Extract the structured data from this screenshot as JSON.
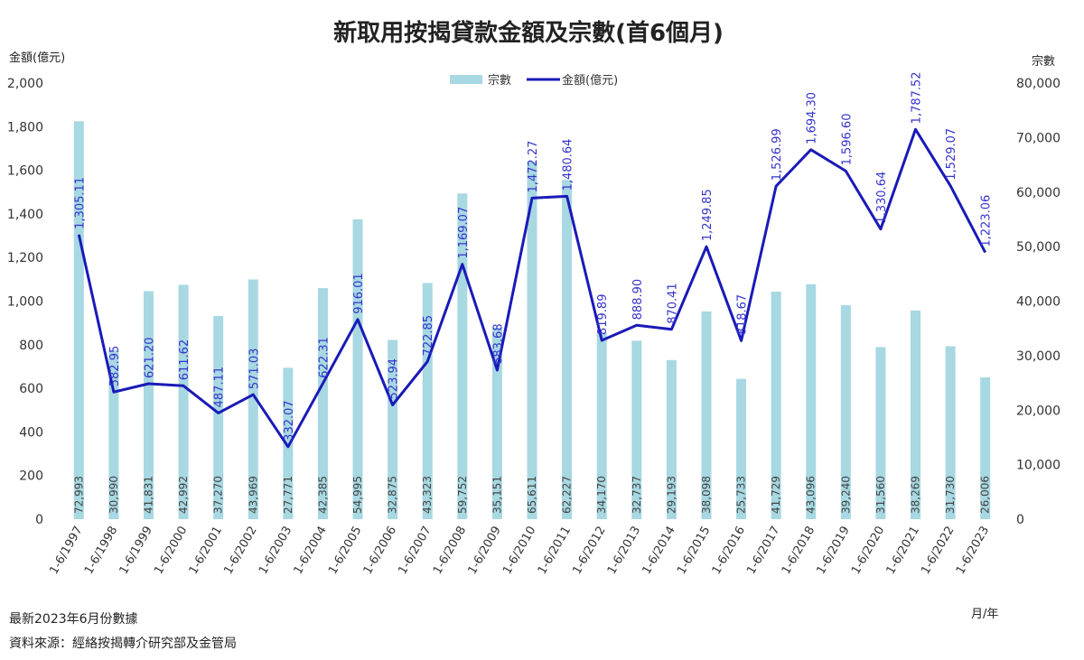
{
  "chart_data": {
    "type": "bar",
    "title": "新取用按揭貸款金額及宗數(首6個月)",
    "left_unit": "金額(億元)",
    "right_unit": "宗數",
    "xlabel": "月/年",
    "categories": [
      "1-6/1997",
      "1-6/1998",
      "1-6/1999",
      "1-6/2000",
      "1-6/2001",
      "1-6/2002",
      "1-6/2003",
      "1-6/2004",
      "1-6/2005",
      "1-6/2006",
      "1-6/2007",
      "1-6/2008",
      "1-6/2009",
      "1-6/2010",
      "1-6/2011",
      "1-6/2012",
      "1-6/2013",
      "1-6/2014",
      "1-6/2015",
      "1-6/2016",
      "1-6/2017",
      "1-6/2018",
      "1-6/2019",
      "1-6/2020",
      "1-6/2021",
      "1-6/2022",
      "1-6/2023"
    ],
    "ylim_left": [
      0,
      2000
    ],
    "yticks_left": [
      "0",
      "200",
      "400",
      "600",
      "800",
      "1,000",
      "1,200",
      "1,400",
      "1,600",
      "1,800",
      "2,000"
    ],
    "ylim_right": [
      0,
      80000
    ],
    "yticks_right": [
      "0",
      "10,000",
      "20,000",
      "30,000",
      "40,000",
      "50,000",
      "60,000",
      "70,000",
      "80,000"
    ],
    "legend_position": "top-center",
    "series": [
      {
        "name": "宗數",
        "type": "bar",
        "axis": "right",
        "color": "#a8d8e2",
        "values": [
          72993,
          30990,
          41831,
          42992,
          37270,
          43969,
          27771,
          42385,
          54995,
          32875,
          43323,
          59752,
          35151,
          65611,
          62227,
          34170,
          32737,
          29193,
          38098,
          25733,
          41729,
          43096,
          39240,
          31560,
          38269,
          31730,
          26006
        ],
        "labels": [
          "72,993",
          "30,990",
          "41,831",
          "42,992",
          "37,270",
          "43,969",
          "27,771",
          "42,385",
          "54,995",
          "32,875",
          "43,323",
          "59,752",
          "35,151",
          "65,611",
          "62,227",
          "34,170",
          "32,737",
          "29,193",
          "38,098",
          "25,733",
          "41,729",
          "43,096",
          "39,240",
          "31,560",
          "38,269",
          "31,730",
          "26,006"
        ]
      },
      {
        "name": "金額(億元)",
        "type": "line",
        "axis": "left",
        "color": "#1a1ab8",
        "values": [
          1305.11,
          582.95,
          621.2,
          611.62,
          487.11,
          571.03,
          332.07,
          622.31,
          916.01,
          523.94,
          722.85,
          1169.07,
          683.68,
          1472.27,
          1480.64,
          819.89,
          888.9,
          870.41,
          1249.85,
          818.67,
          1526.99,
          1694.3,
          1596.6,
          1330.64,
          1787.52,
          1529.07,
          1223.06
        ],
        "labels": [
          "1,305.11",
          "582.95",
          "621.20",
          "611.62",
          "487.11",
          "571.03",
          "332.07",
          "622.31",
          "916.01",
          "523.94",
          "722.85",
          "1,169.07",
          "683.68",
          "1,472.27",
          "1,480.64",
          "819.89",
          "888.90",
          "870.41",
          "1,249.85",
          "818.67",
          "1,526.99",
          "1,694.30",
          "1,596.60",
          "1,330.64",
          "1,787.52",
          "1,529.07",
          "1,223.06"
        ]
      }
    ]
  },
  "notes": {
    "latest": "最新2023年6月份數據",
    "source": "資料來源：經絡按揭轉介研究部及金管局"
  }
}
